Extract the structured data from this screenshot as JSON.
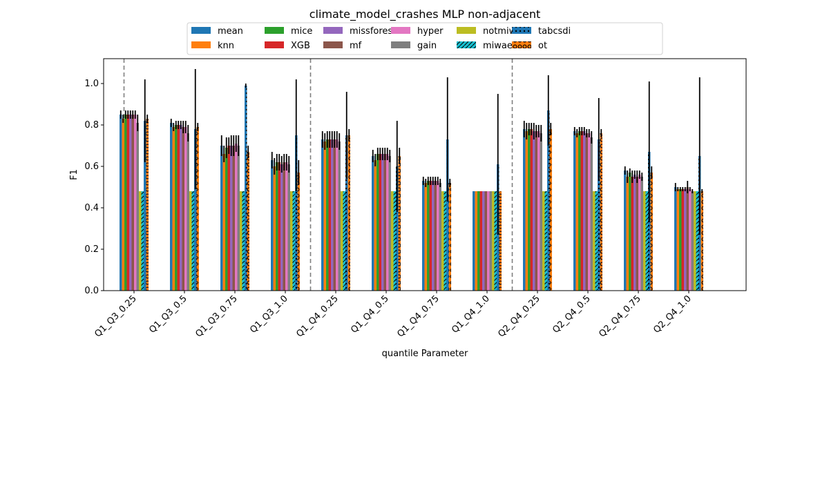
{
  "chart_data": {
    "type": "bar",
    "title": "climate_model_crashes MLP non-adjacent",
    "xlabel": "quantile Parameter",
    "ylabel": "F1",
    "ylim": [
      0,
      1.12
    ],
    "yticks": [
      0.0,
      0.2,
      0.4,
      0.6,
      0.8,
      1.0
    ],
    "ytick_labels": [
      "0.0",
      "0.2",
      "0.4",
      "0.6",
      "0.8",
      "1.0"
    ],
    "legend_position": "top-center",
    "group_separators_after": [
      3,
      7
    ],
    "categories": [
      "Q1_Q3_0.25",
      "Q1_Q3_0.5",
      "Q1_Q3_0.75",
      "Q1_Q3_1.0",
      "Q1_Q4_0.25",
      "Q1_Q4_0.5",
      "Q1_Q4_0.75",
      "Q1_Q4_1.0",
      "Q2_Q4_0.25",
      "Q2_Q4_0.5",
      "Q2_Q4_0.75",
      "Q2_Q4_1.0"
    ],
    "series": [
      {
        "name": "mean",
        "color": "#1f77b4",
        "hatch": "none",
        "values": [
          0.85,
          0.81,
          0.7,
          0.63,
          0.73,
          0.65,
          0.53,
          0.48,
          0.78,
          0.77,
          0.58,
          0.5
        ],
        "errors": [
          0.02,
          0.02,
          0.05,
          0.04,
          0.04,
          0.03,
          0.02,
          0.0,
          0.04,
          0.02,
          0.02,
          0.02
        ]
      },
      {
        "name": "knn",
        "color": "#ff7f0e",
        "hatch": "none",
        "values": [
          0.83,
          0.79,
          0.66,
          0.6,
          0.72,
          0.63,
          0.52,
          0.48,
          0.77,
          0.76,
          0.55,
          0.49
        ],
        "errors": [
          0.02,
          0.02,
          0.04,
          0.04,
          0.04,
          0.03,
          0.02,
          0.0,
          0.04,
          0.02,
          0.03,
          0.01
        ]
      },
      {
        "name": "mice",
        "color": "#2ca02c",
        "hatch": "none",
        "values": [
          0.85,
          0.8,
          0.69,
          0.62,
          0.73,
          0.66,
          0.53,
          0.48,
          0.78,
          0.77,
          0.57,
          0.49
        ],
        "errors": [
          0.02,
          0.02,
          0.05,
          0.04,
          0.04,
          0.03,
          0.02,
          0.0,
          0.03,
          0.02,
          0.02,
          0.01
        ]
      },
      {
        "name": "XGB",
        "color": "#d62728",
        "hatch": "none",
        "values": [
          0.85,
          0.8,
          0.7,
          0.62,
          0.73,
          0.66,
          0.53,
          0.48,
          0.78,
          0.77,
          0.55,
          0.49
        ],
        "errors": [
          0.02,
          0.02,
          0.04,
          0.04,
          0.04,
          0.03,
          0.02,
          0.0,
          0.03,
          0.02,
          0.03,
          0.01
        ]
      },
      {
        "name": "missforest",
        "color": "#9467bd",
        "hatch": "none",
        "values": [
          0.85,
          0.8,
          0.7,
          0.61,
          0.73,
          0.66,
          0.53,
          0.48,
          0.77,
          0.77,
          0.56,
          0.49
        ],
        "errors": [
          0.02,
          0.02,
          0.05,
          0.04,
          0.04,
          0.03,
          0.02,
          0.0,
          0.04,
          0.02,
          0.02,
          0.01
        ]
      },
      {
        "name": "mf",
        "color": "#8c564b",
        "hatch": "none",
        "values": [
          0.85,
          0.79,
          0.7,
          0.62,
          0.73,
          0.66,
          0.53,
          0.48,
          0.77,
          0.76,
          0.55,
          0.5
        ],
        "errors": [
          0.02,
          0.03,
          0.05,
          0.04,
          0.04,
          0.03,
          0.02,
          0.0,
          0.03,
          0.02,
          0.03,
          0.03
        ]
      },
      {
        "name": "hyper",
        "color": "#e377c2",
        "hatch": "none",
        "values": [
          0.85,
          0.79,
          0.71,
          0.62,
          0.73,
          0.66,
          0.53,
          0.48,
          0.77,
          0.76,
          0.56,
          0.49
        ],
        "errors": [
          0.02,
          0.03,
          0.04,
          0.04,
          0.04,
          0.03,
          0.02,
          0.0,
          0.03,
          0.02,
          0.02,
          0.01
        ]
      },
      {
        "name": "gain",
        "color": "#7f7f7f",
        "hatch": "none",
        "values": [
          0.81,
          0.76,
          0.7,
          0.61,
          0.72,
          0.65,
          0.52,
          0.48,
          0.76,
          0.74,
          0.55,
          0.48
        ],
        "errors": [
          0.04,
          0.04,
          0.05,
          0.04,
          0.04,
          0.03,
          0.02,
          0.0,
          0.04,
          0.03,
          0.02,
          0.01
        ]
      },
      {
        "name": "notmiwae",
        "color": "#bcbd22",
        "hatch": "none",
        "values": [
          0.48,
          0.48,
          0.48,
          0.48,
          0.48,
          0.48,
          0.48,
          0.48,
          0.48,
          0.48,
          0.48,
          0.48
        ],
        "errors": [
          0,
          0,
          0,
          0,
          0,
          0,
          0,
          0,
          0,
          0,
          0,
          0
        ]
      },
      {
        "name": "miwae",
        "color": "#17becf",
        "hatch": "diagonal",
        "values": [
          0.48,
          0.48,
          0.48,
          0.48,
          0.48,
          0.48,
          0.48,
          0.48,
          0.48,
          0.48,
          0.48,
          0.48
        ],
        "errors": [
          0,
          0,
          0,
          0,
          0,
          0,
          0,
          0,
          0,
          0,
          0,
          0
        ]
      },
      {
        "name": "tabcsdi",
        "color": "#1f77b4",
        "hatch": "dots",
        "values": [
          0.82,
          0.78,
          0.99,
          0.75,
          0.75,
          0.6,
          0.73,
          0.61,
          0.87,
          0.73,
          0.67,
          0.65
        ],
        "errors": [
          0.2,
          0.29,
          0.01,
          0.27,
          0.21,
          0.22,
          0.3,
          0.34,
          0.17,
          0.2,
          0.34,
          0.38
        ]
      },
      {
        "name": "ot",
        "color": "#ff7f0e",
        "hatch": "circles",
        "values": [
          0.83,
          0.79,
          0.67,
          0.57,
          0.75,
          0.65,
          0.52,
          0.48,
          0.78,
          0.76,
          0.57,
          0.48
        ],
        "errors": [
          0.02,
          0.02,
          0.03,
          0.06,
          0.03,
          0.04,
          0.02,
          0.0,
          0.03,
          0.02,
          0.03,
          0.01
        ]
      }
    ]
  }
}
